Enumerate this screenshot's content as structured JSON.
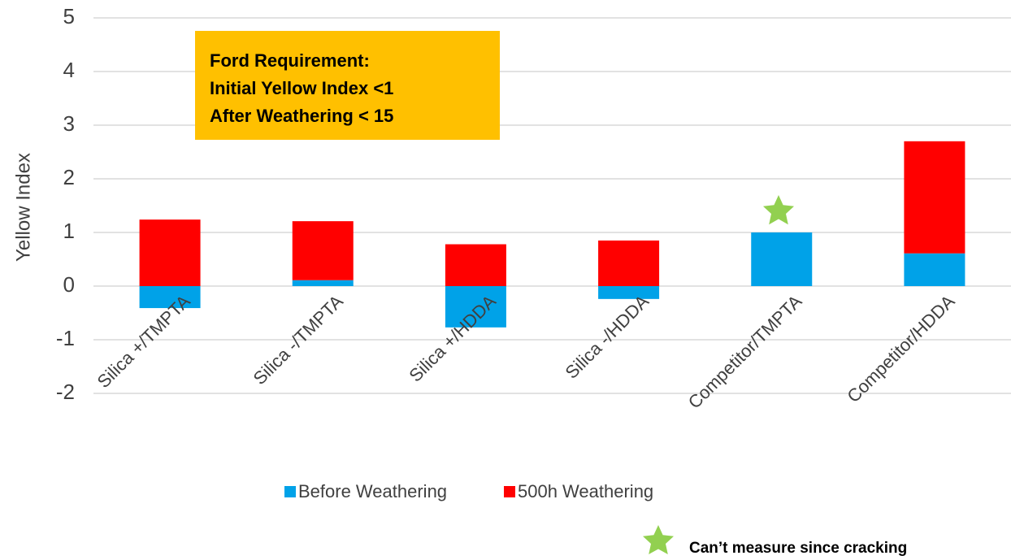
{
  "chart_data": {
    "type": "stacked_bar",
    "y_label": "Yellow Index",
    "categories": [
      "Silica +/TMPTA",
      "Silica -/TMPTA",
      "Silica +/HDDA",
      "Silica -/HDDA",
      "Competitor/TMPTA",
      "Competitor/HDDA"
    ],
    "series": [
      {
        "name": "Before Weathering",
        "color": "#00a2e8",
        "values": [
          -0.41,
          0.11,
          -0.77,
          -0.24,
          1.0,
          0.61
        ]
      },
      {
        "name": "500h Weathering",
        "color": "#ff0000",
        "values": [
          1.24,
          1.1,
          0.78,
          0.85,
          0,
          2.09
        ]
      }
    ],
    "ylim": [
      -2,
      5
    ],
    "yticks": [
      -2,
      -1,
      0,
      1,
      2,
      3,
      4,
      5
    ],
    "grid": true,
    "annotation_lines": [
      "Ford Requirement:",
      "Initial Yellow Index <1",
      "After Weathering < 15"
    ],
    "footnote": "Can’t measure since cracking"
  }
}
